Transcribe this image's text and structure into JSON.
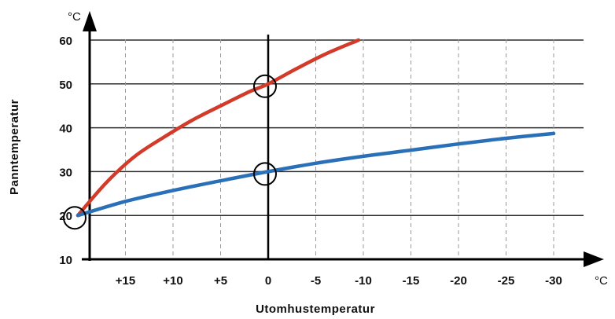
{
  "chart_data": {
    "type": "line",
    "xlabel": "Utomhustemperatur",
    "ylabel": "Panntemperatur",
    "x_unit": "°C",
    "y_unit": "°C",
    "x_ticks": [
      15,
      10,
      5,
      0,
      -5,
      -10,
      -15,
      -20,
      -25,
      -30
    ],
    "x_tick_labels": [
      "+15",
      "+10",
      "+5",
      "0",
      "-5",
      "-10",
      "-15",
      "-20",
      "-25",
      "-30"
    ],
    "y_ticks": [
      10,
      20,
      30,
      40,
      50,
      60
    ],
    "y_tick_labels": [
      "10",
      "20",
      "30",
      "40",
      "50",
      "60"
    ],
    "xlim": [
      20,
      -30
    ],
    "ylim": [
      10,
      60
    ],
    "x_reversed": true,
    "grid": true,
    "series": [
      {
        "color": "#d23b2a",
        "x": [
          20,
          17,
          14,
          11,
          8,
          5,
          2,
          0,
          -3,
          -6,
          -9.5
        ],
        "y": [
          20,
          27.5,
          33.5,
          37.8,
          41.7,
          45,
          48.2,
          50,
          53.5,
          56.8,
          60
        ]
      },
      {
        "color": "#2a70b8",
        "x": [
          20,
          15,
          10,
          5,
          0,
          -5,
          -10,
          -15,
          -20,
          -25,
          -30
        ],
        "y": [
          20,
          23.2,
          25.7,
          27.9,
          30,
          31.9,
          33.5,
          34.9,
          36.3,
          37.6,
          38.7
        ]
      }
    ],
    "markers": [
      {
        "x": 20,
        "y": 20
      },
      {
        "x": 0,
        "y": 30
      },
      {
        "x": 0,
        "y": 50
      }
    ]
  }
}
